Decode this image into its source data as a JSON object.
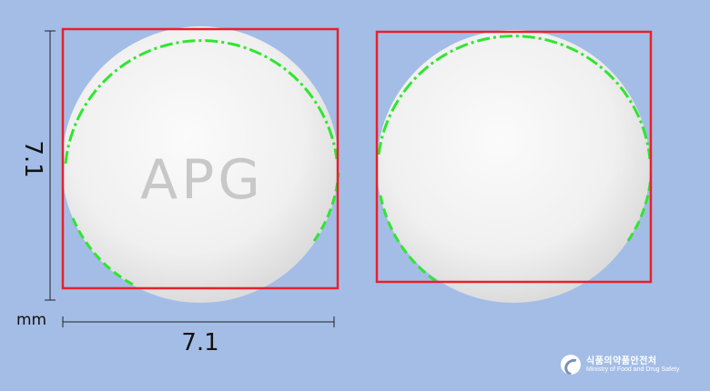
{
  "measurements": {
    "height": "7.1",
    "width": "7.1",
    "unit": "mm"
  },
  "tablet_front": {
    "imprint": "APG"
  },
  "logo": {
    "korean": "식품의약품안전처",
    "english": "Ministry of Food and Drug Safety"
  },
  "colors": {
    "background": "#a4bde6",
    "tablet": "#f2f2f2",
    "bounding_box": "#e8202a",
    "contour": "#2fe62f"
  }
}
